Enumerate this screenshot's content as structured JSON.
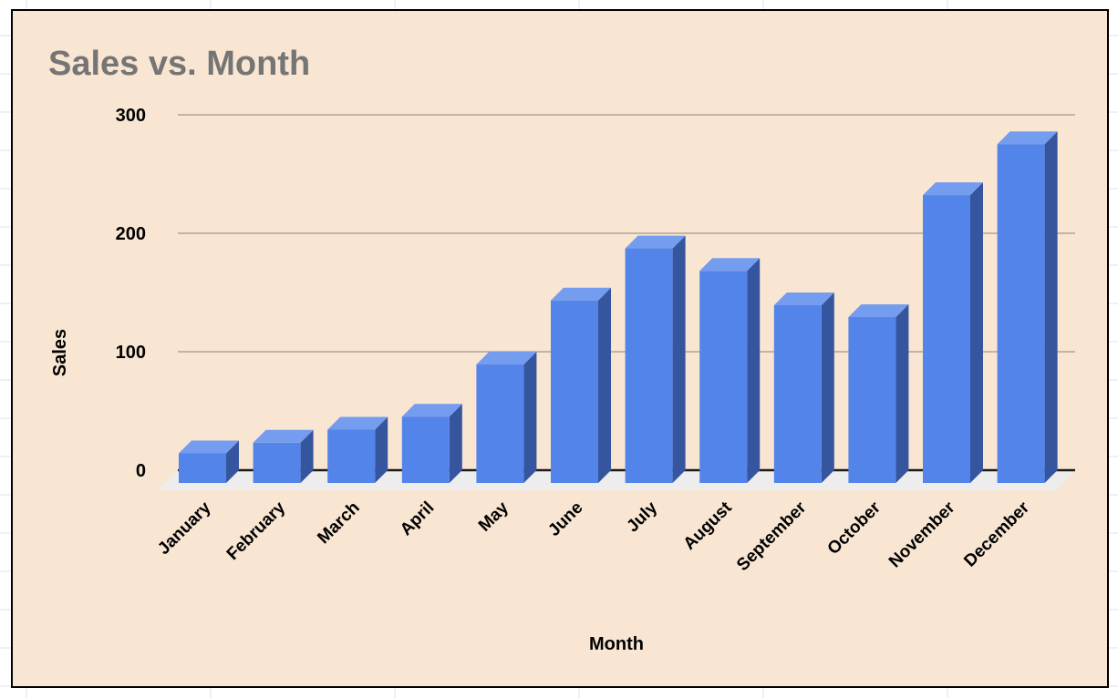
{
  "chart_data": {
    "type": "bar",
    "style": "3d-column",
    "title": "Sales vs. Month",
    "xlabel": "Month",
    "ylabel": "Sales",
    "categories": [
      "January",
      "February",
      "March",
      "April",
      "May",
      "June",
      "July",
      "August",
      "September",
      "October",
      "November",
      "December"
    ],
    "values": [
      25,
      34,
      45,
      56,
      100,
      154,
      198,
      179,
      150,
      140,
      243,
      286
    ],
    "ylim": [
      0,
      300
    ],
    "yticks": [
      0,
      100,
      200,
      300
    ],
    "grid": true,
    "legend": "none"
  },
  "colors": {
    "background": "#f8e5d2",
    "bar_front": "#5384ea",
    "bar_top": "#749cef",
    "bar_side": "#35559f",
    "gridline": "#c4b4a4",
    "floor": "#ededed",
    "title": "#757575"
  }
}
